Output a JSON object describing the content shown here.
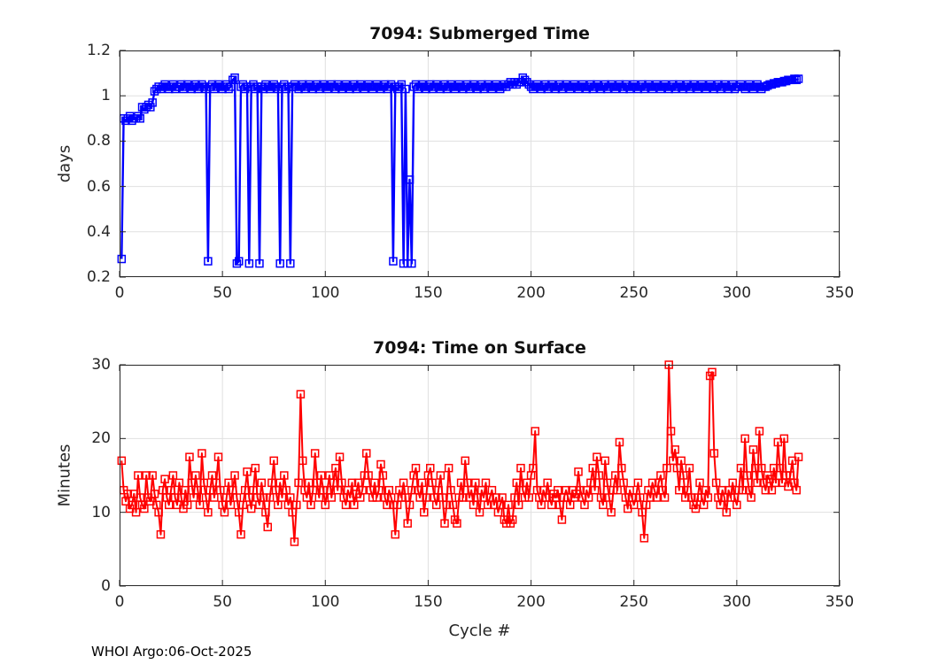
{
  "figure": {
    "footer": "WHOI Argo:06-Oct-2025",
    "background": "#ffffff",
    "grid_color": "#e0e0e0",
    "axis_color": "#262626"
  },
  "chart_data": [
    {
      "type": "line",
      "title": "7094: Submerged Time",
      "xlabel": "",
      "ylabel": "days",
      "legend": null,
      "grid": true,
      "line_color": "#0000ff",
      "marker": "open-square",
      "xlim": [
        0,
        350
      ],
      "ylim": [
        0.2,
        1.2
      ],
      "xticks": [
        0,
        50,
        100,
        150,
        200,
        250,
        300,
        350
      ],
      "yticks": [
        0.2,
        0.4,
        0.6,
        0.8,
        1,
        1.2
      ],
      "x_start": 1,
      "values": [
        0.28,
        0.9,
        0.89,
        0.9,
        0.91,
        0.89,
        0.9,
        0.9,
        0.91,
        0.9,
        0.95,
        0.94,
        0.95,
        0.96,
        0.95,
        0.97,
        1.02,
        1.03,
        1.04,
        1.03,
        1.04,
        1.05,
        1.04,
        1.03,
        1.04,
        1.05,
        1.03,
        1.04,
        1.04,
        1.05,
        1.03,
        1.04,
        1.05,
        1.04,
        1.03,
        1.04,
        1.05,
        1.03,
        1.04,
        1.05,
        1.04,
        1.03,
        0.27,
        1.04,
        1.05,
        1.03,
        1.04,
        1.05,
        1.04,
        1.03,
        1.04,
        1.05,
        1.03,
        1.04,
        1.07,
        1.08,
        0.26,
        0.27,
        1.04,
        1.05,
        1.03,
        1.04,
        0.26,
        1.04,
        1.05,
        1.03,
        1.04,
        0.26,
        1.04,
        1.03,
        1.05,
        1.04,
        1.03,
        1.04,
        1.05,
        1.04,
        1.03,
        0.26,
        1.04,
        1.05,
        1.03,
        1.04,
        0.26,
        1.04,
        1.05,
        1.04,
        1.03,
        1.04,
        1.05,
        1.03,
        1.04,
        1.05,
        1.04,
        1.03,
        1.04,
        1.05,
        1.03,
        1.04,
        1.05,
        1.04,
        1.03,
        1.04,
        1.05,
        1.04,
        1.03,
        1.05,
        1.04,
        1.03,
        1.04,
        1.05,
        1.04,
        1.03,
        1.04,
        1.05,
        1.03,
        1.04,
        1.05,
        1.04,
        1.03,
        1.04,
        1.05,
        1.04,
        1.03,
        1.04,
        1.05,
        1.04,
        1.03,
        1.04,
        1.05,
        1.03,
        1.04,
        1.05,
        0.27,
        1.04,
        1.03,
        1.04,
        1.05,
        0.26,
        1.03,
        0.26,
        0.63,
        0.26,
        1.04,
        1.05,
        1.03,
        1.04,
        1.05,
        1.04,
        1.03,
        1.04,
        1.05,
        1.03,
        1.04,
        1.05,
        1.04,
        1.03,
        1.04,
        1.05,
        1.03,
        1.04,
        1.05,
        1.04,
        1.03,
        1.04,
        1.05,
        1.04,
        1.03,
        1.04,
        1.05,
        1.03,
        1.04,
        1.05,
        1.04,
        1.03,
        1.04,
        1.05,
        1.03,
        1.04,
        1.05,
        1.04,
        1.03,
        1.04,
        1.05,
        1.04,
        1.03,
        1.04,
        1.05,
        1.04,
        1.05,
        1.06,
        1.05,
        1.06,
        1.05,
        1.06,
        1.06,
        1.08,
        1.07,
        1.06,
        1.05,
        1.04,
        1.03,
        1.04,
        1.05,
        1.04,
        1.03,
        1.04,
        1.05,
        1.03,
        1.04,
        1.05,
        1.04,
        1.03,
        1.04,
        1.05,
        1.03,
        1.04,
        1.05,
        1.04,
        1.03,
        1.04,
        1.05,
        1.04,
        1.03,
        1.04,
        1.05,
        1.04,
        1.03,
        1.04,
        1.05,
        1.03,
        1.04,
        1.05,
        1.04,
        1.03,
        1.04,
        1.05,
        1.03,
        1.04,
        1.05,
        1.04,
        1.03,
        1.04,
        1.05,
        1.04,
        1.03,
        1.05,
        1.04,
        1.03,
        1.04,
        1.05,
        1.04,
        1.03,
        1.04,
        1.05,
        1.03,
        1.04,
        1.05,
        1.04,
        1.03,
        1.04,
        1.05,
        1.04,
        1.03,
        1.04,
        1.05,
        1.04,
        1.03,
        1.04,
        1.05,
        1.03,
        1.04,
        1.05,
        1.04,
        1.03,
        1.04,
        1.05,
        1.03,
        1.04,
        1.05,
        1.04,
        1.03,
        1.04,
        1.05,
        1.04,
        1.03,
        1.04,
        1.05,
        1.04,
        1.03,
        1.04,
        1.05,
        1.03,
        1.04,
        1.05,
        1.04,
        1.03,
        1.04,
        1.05,
        1.03,
        1.04,
        1.04,
        1.05,
        1.04,
        1.03,
        1.04,
        1.05,
        1.04,
        1.03,
        1.04,
        1.05,
        1.04,
        1.03,
        1.04,
        1.04,
        1.045,
        1.05,
        1.05,
        1.055,
        1.055,
        1.06,
        1.06,
        1.06,
        1.065,
        1.065,
        1.07,
        1.07,
        1.07,
        1.075,
        1.07,
        1.075
      ]
    },
    {
      "type": "line",
      "title": "7094: Time on Surface",
      "xlabel": "Cycle #",
      "ylabel": "Minutes",
      "legend": null,
      "grid": true,
      "line_color": "#ff0000",
      "marker": "open-square",
      "xlim": [
        0,
        350
      ],
      "ylim": [
        0,
        30
      ],
      "xticks": [
        0,
        50,
        100,
        150,
        200,
        250,
        300,
        350
      ],
      "yticks": [
        0,
        10,
        20,
        30
      ],
      "x_start": 1,
      "values": [
        17,
        13,
        11.5,
        12.5,
        10.5,
        11,
        12.5,
        10,
        15,
        12,
        11,
        10.5,
        15,
        12,
        11.5,
        15,
        12.5,
        11,
        10,
        7,
        13,
        14.5,
        12,
        11,
        13,
        15,
        12,
        11,
        14,
        12,
        10.5,
        13,
        11,
        17.5,
        14,
        12,
        15,
        13,
        11,
        18,
        14,
        12,
        10,
        13,
        15,
        12,
        14,
        17.5,
        13,
        11,
        10,
        12,
        14,
        11,
        13,
        15,
        12,
        10,
        7,
        11,
        13,
        15.5,
        12,
        10.5,
        13,
        16,
        12,
        11,
        14,
        12,
        10,
        8,
        12,
        14,
        17,
        13,
        11,
        14,
        12,
        15,
        13,
        11,
        12,
        10,
        6,
        11,
        14,
        26,
        17,
        13,
        12,
        14,
        11,
        13,
        18,
        14,
        12,
        15,
        13,
        11,
        13,
        15,
        12,
        14,
        16,
        13,
        17.5,
        14,
        12,
        11,
        13,
        12,
        14,
        11,
        12.5,
        14,
        12,
        13,
        15,
        18,
        15,
        13,
        12,
        14,
        12,
        13,
        16.5,
        15,
        12,
        11,
        13,
        12,
        11,
        7,
        11,
        13,
        12,
        14,
        12,
        8.5,
        11,
        13,
        15,
        16,
        13,
        12,
        14,
        10,
        12,
        15,
        16,
        14,
        12,
        11,
        13,
        15,
        12,
        8.5,
        11,
        16,
        13,
        11,
        9,
        8.5,
        12,
        14,
        12,
        17,
        14,
        12,
        13,
        11,
        14,
        12,
        10,
        13,
        12,
        14,
        11,
        12,
        13,
        11,
        12,
        10,
        11,
        12,
        9,
        8.5,
        11,
        8.5,
        9,
        12,
        14,
        11,
        16,
        13,
        12,
        14,
        12,
        15,
        16,
        21,
        13,
        12,
        11,
        13,
        12,
        14,
        12,
        11,
        12.5,
        12,
        13,
        11,
        9,
        12,
        13,
        12,
        11,
        13,
        12,
        12.5,
        15.5,
        13,
        12,
        11,
        13,
        12,
        14,
        16,
        13,
        17.5,
        15,
        12,
        11,
        17,
        14,
        12,
        10,
        13,
        15,
        13,
        19.5,
        16,
        14,
        12,
        10.5,
        13,
        12,
        11,
        12,
        14,
        12,
        10,
        6.5,
        11,
        13,
        12,
        14,
        13,
        12,
        14,
        15,
        13,
        12,
        16,
        30,
        21,
        17,
        18.5,
        16,
        13,
        17,
        15,
        12,
        13,
        16,
        12,
        11,
        10.5,
        12,
        14,
        12,
        11,
        13,
        12,
        28.5,
        29,
        18,
        14,
        12,
        11,
        13,
        12,
        10,
        13,
        12,
        14,
        12,
        11,
        13,
        16,
        13,
        20,
        15,
        13,
        12,
        18.5,
        16,
        14,
        21,
        16,
        14,
        13,
        15,
        14.5,
        13,
        16,
        14,
        19.5,
        16,
        14,
        20,
        15,
        13.5,
        15,
        17,
        14,
        13,
        17.5
      ]
    }
  ]
}
